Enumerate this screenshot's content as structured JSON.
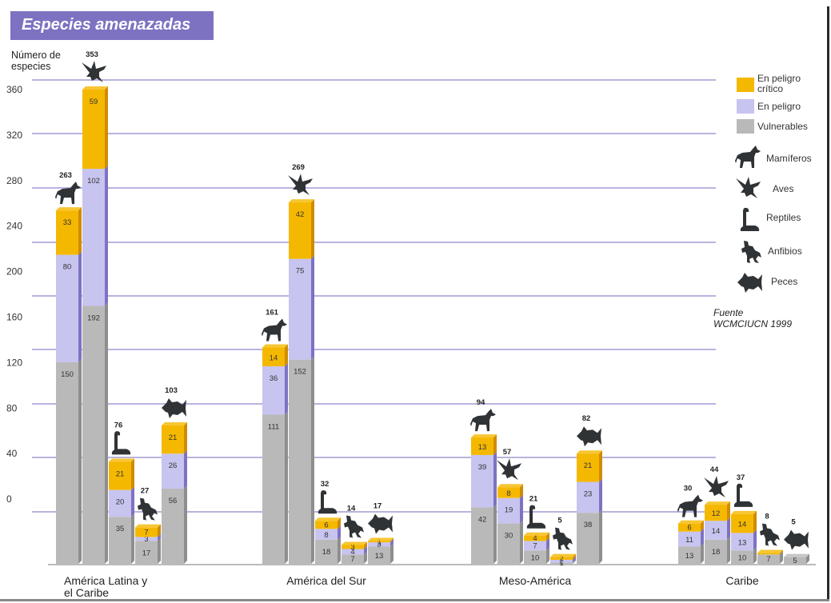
{
  "title": "Especies amenazadas",
  "y_title_line1": "Número de",
  "y_title_line2": "especies",
  "source_line1": "Fuente",
  "source_line2": "WCMCIUCN 1999",
  "legend": {
    "critico_l1": "En peligro",
    "critico_l2": "crítico",
    "peligro": "En peligro",
    "vulnerables": "Vulnerables",
    "mamiferos": "Mamíferos",
    "aves": "Aves",
    "reptiles": "Reptiles",
    "anfibios": "Anfibios",
    "peces": "Peces"
  },
  "colors": {
    "critico": "#f5b800",
    "peligro": "#c7c4ef",
    "vulnerables": "#b9b9b9",
    "title_bg": "#7d72c2",
    "grid": "#8e86c9"
  },
  "chart_data": {
    "type": "bar",
    "stacked": true,
    "title": "Especies amenazadas",
    "ylabel": "Número de especies",
    "ylim": [
      0,
      360
    ],
    "yticks": [
      "360",
      "320",
      "280",
      "240",
      "200",
      "160",
      "120",
      "80",
      "40",
      "0"
    ],
    "stack_order": [
      "Vulnerables",
      "En peligro",
      "En peligro crítico"
    ],
    "animals": [
      "Mamíferos",
      "Aves",
      "Reptiles",
      "Anfibios",
      "Peces"
    ],
    "groups": [
      {
        "label_line1": "América Latina y",
        "label_line2": "el Caribe",
        "bars": [
          {
            "animal": "Mamíferos",
            "icon": "mammal",
            "total": "263",
            "vulnerables": 150,
            "peligro": 80,
            "critico": 33,
            "labels": [
              "150",
              "80",
              "33"
            ]
          },
          {
            "animal": "Aves",
            "icon": "bird",
            "total": "353",
            "vulnerables": 192,
            "peligro": 102,
            "critico": 59,
            "labels": [
              "192",
              "102",
              "59"
            ]
          },
          {
            "animal": "Reptiles",
            "icon": "reptile",
            "total": "76",
            "vulnerables": 35,
            "peligro": 20,
            "critico": 21,
            "labels": [
              "35",
              "20",
              "21"
            ]
          },
          {
            "animal": "Anfibios",
            "icon": "amphibian",
            "total": "27",
            "vulnerables": 17,
            "peligro": 3,
            "critico": 7,
            "labels": [
              "17",
              "3",
              "7"
            ]
          },
          {
            "animal": "Peces",
            "icon": "fish",
            "total": "103",
            "vulnerables": 56,
            "peligro": 26,
            "critico": 21,
            "labels": [
              "56",
              "26",
              "21"
            ]
          }
        ]
      },
      {
        "label_line1": "América del Sur",
        "label_line2": "",
        "bars": [
          {
            "animal": "Mamíferos",
            "icon": "mammal",
            "total": "161",
            "vulnerables": 111,
            "peligro": 36,
            "critico": 14,
            "labels": [
              "111",
              "36",
              "14"
            ]
          },
          {
            "animal": "Aves",
            "icon": "bird",
            "total": "269",
            "vulnerables": 152,
            "peligro": 75,
            "critico": 42,
            "labels": [
              "152",
              "75",
              "42"
            ]
          },
          {
            "animal": "Reptiles",
            "icon": "reptile",
            "total": "32",
            "vulnerables": 18,
            "peligro": 8,
            "critico": 6,
            "labels": [
              "18",
              "8",
              "6"
            ]
          },
          {
            "animal": "Anfibios",
            "icon": "amphibian",
            "total": "14",
            "vulnerables": 7,
            "peligro": 4,
            "critico": 3,
            "labels": [
              "7",
              "4",
              "3"
            ]
          },
          {
            "animal": "Peces",
            "icon": "fish",
            "total": "17",
            "vulnerables": 13,
            "peligro": 3,
            "critico": 1,
            "labels": [
              "13",
              "3",
              "1"
            ]
          }
        ]
      },
      {
        "label_line1": "Meso-América",
        "label_line2": "",
        "bars": [
          {
            "animal": "Mamíferos",
            "icon": "mammal",
            "total": "94",
            "vulnerables": 42,
            "peligro": 39,
            "critico": 13,
            "labels": [
              "42",
              "39",
              "13"
            ]
          },
          {
            "animal": "Aves",
            "icon": "bird",
            "total": "57",
            "vulnerables": 30,
            "peligro": 19,
            "critico": 8,
            "labels": [
              "30",
              "19",
              "8"
            ]
          },
          {
            "animal": "Reptiles",
            "icon": "reptile",
            "total": "21",
            "vulnerables": 10,
            "peligro": 7,
            "critico": 4,
            "labels": [
              "10",
              "7",
              "4"
            ]
          },
          {
            "animal": "Anfibios",
            "icon": "amphibian",
            "total": "5",
            "vulnerables": 1,
            "peligro": 2,
            "critico": 2,
            "labels": [
              "1",
              "2",
              "2"
            ]
          },
          {
            "animal": "Peces",
            "icon": "fish",
            "total": "82",
            "vulnerables": 38,
            "peligro": 23,
            "critico": 21,
            "labels": [
              "38",
              "23",
              "21"
            ]
          }
        ]
      },
      {
        "label_line1": "Caribe",
        "label_line2": "",
        "bars": [
          {
            "animal": "Mamíferos",
            "icon": "mammal",
            "total": "30",
            "vulnerables": 13,
            "peligro": 11,
            "critico": 6,
            "labels": [
              "13",
              "11",
              "6"
            ]
          },
          {
            "animal": "Aves",
            "icon": "bird",
            "total": "44",
            "vulnerables": 18,
            "peligro": 14,
            "critico": 12,
            "labels": [
              "18",
              "14",
              "12"
            ]
          },
          {
            "animal": "Reptiles",
            "icon": "reptile",
            "total": "37",
            "vulnerables": 10,
            "peligro": 13,
            "critico": 14,
            "labels": [
              "10",
              "13",
              "14"
            ]
          },
          {
            "animal": "Anfibios",
            "icon": "amphibian",
            "total": "8",
            "vulnerables": 7,
            "peligro": 0,
            "critico": 1,
            "labels": [
              "7",
              "",
              ""
            ]
          },
          {
            "animal": "Peces",
            "icon": "fish",
            "total": "5",
            "vulnerables": 5,
            "peligro": 0,
            "critico": 0,
            "labels": [
              "5",
              "",
              ""
            ]
          }
        ]
      }
    ]
  }
}
